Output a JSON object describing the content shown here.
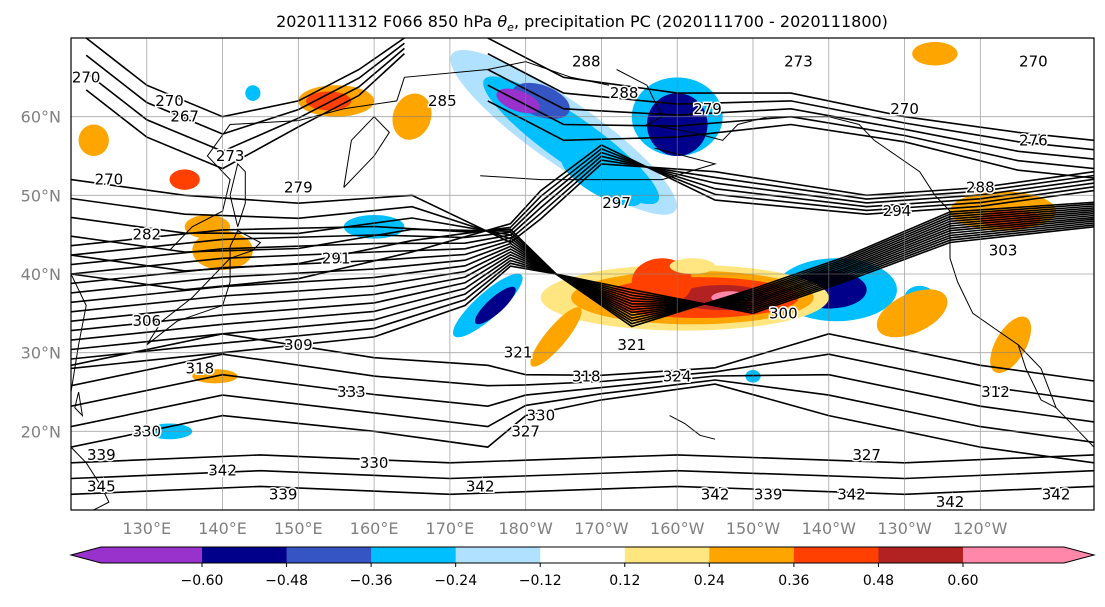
{
  "title": "2020111312 F066 850 hPa θe, precipitation PC (2020111700 - 2020111800)",
  "title_parts": {
    "prefix": "2020111312 F066 850 hPa ",
    "theta": "θ",
    "sub": "e",
    "suffix": ", precipitation PC (2020111700 - 2020111800)"
  },
  "map": {
    "lon_range": [
      120,
      255
    ],
    "lat_range": [
      10,
      70
    ],
    "grid": true,
    "lon_ticks": [
      {
        "lon": 130,
        "label": "130°E"
      },
      {
        "lon": 140,
        "label": "140°E"
      },
      {
        "lon": 150,
        "label": "150°E"
      },
      {
        "lon": 160,
        "label": "160°E"
      },
      {
        "lon": 170,
        "label": "170°E"
      },
      {
        "lon": 180,
        "label": "180°W"
      },
      {
        "lon": 190,
        "label": "170°W"
      },
      {
        "lon": 200,
        "label": "160°W"
      },
      {
        "lon": 210,
        "label": "150°W"
      },
      {
        "lon": 220,
        "label": "140°W"
      },
      {
        "lon": 230,
        "label": "130°W"
      },
      {
        "lon": 240,
        "label": "120°W"
      }
    ],
    "lat_ticks": [
      {
        "lat": 20,
        "label": "20°N"
      },
      {
        "lat": 30,
        "label": "30°N"
      },
      {
        "lat": 40,
        "label": "40°N"
      },
      {
        "lat": 50,
        "label": "50°N"
      },
      {
        "lat": 60,
        "label": "60°N"
      }
    ]
  },
  "contour_labels": [
    {
      "text": "270",
      "lon": 122,
      "lat": 65
    },
    {
      "text": "270",
      "lon": 133,
      "lat": 62
    },
    {
      "text": "267",
      "lon": 135,
      "lat": 60
    },
    {
      "text": "270",
      "lon": 125,
      "lat": 52
    },
    {
      "text": "273",
      "lon": 141,
      "lat": 55
    },
    {
      "text": "279",
      "lon": 150,
      "lat": 51
    },
    {
      "text": "282",
      "lon": 130,
      "lat": 45
    },
    {
      "text": "285",
      "lon": 169,
      "lat": 62
    },
    {
      "text": "288",
      "lon": 188,
      "lat": 67
    },
    {
      "text": "288",
      "lon": 193,
      "lat": 63
    },
    {
      "text": "279",
      "lon": 204,
      "lat": 61
    },
    {
      "text": "273",
      "lon": 216,
      "lat": 67
    },
    {
      "text": "270",
      "lon": 247,
      "lat": 67
    },
    {
      "text": "270",
      "lon": 230,
      "lat": 61
    },
    {
      "text": "276",
      "lon": 247,
      "lat": 57
    },
    {
      "text": "288",
      "lon": 240,
      "lat": 51
    },
    {
      "text": "294",
      "lon": 229,
      "lat": 48
    },
    {
      "text": "303",
      "lon": 243,
      "lat": 43
    },
    {
      "text": "297",
      "lon": 192,
      "lat": 49
    },
    {
      "text": "291",
      "lon": 155,
      "lat": 42
    },
    {
      "text": "306",
      "lon": 130,
      "lat": 34
    },
    {
      "text": "309",
      "lon": 150,
      "lat": 31
    },
    {
      "text": "318",
      "lon": 137,
      "lat": 28
    },
    {
      "text": "321",
      "lon": 194,
      "lat": 31
    },
    {
      "text": "318",
      "lon": 188,
      "lat": 27
    },
    {
      "text": "324",
      "lon": 200,
      "lat": 27
    },
    {
      "text": "300",
      "lon": 214,
      "lat": 35
    },
    {
      "text": "330",
      "lon": 130,
      "lat": 20
    },
    {
      "text": "333",
      "lon": 157,
      "lat": 25
    },
    {
      "text": "330",
      "lon": 182,
      "lat": 22
    },
    {
      "text": "327",
      "lon": 180,
      "lat": 20
    },
    {
      "text": "330",
      "lon": 160,
      "lat": 16
    },
    {
      "text": "339",
      "lon": 148,
      "lat": 12
    },
    {
      "text": "342",
      "lon": 140,
      "lat": 15
    },
    {
      "text": "342",
      "lon": 174,
      "lat": 13
    },
    {
      "text": "342",
      "lon": 205,
      "lat": 12
    },
    {
      "text": "339",
      "lon": 212,
      "lat": 12
    },
    {
      "text": "342",
      "lon": 223,
      "lat": 12
    },
    {
      "text": "342",
      "lon": 236,
      "lat": 11
    },
    {
      "text": "342",
      "lon": 250,
      "lat": 12
    },
    {
      "text": "327",
      "lon": 225,
      "lat": 17
    },
    {
      "text": "312",
      "lon": 242,
      "lat": 25
    },
    {
      "text": "345",
      "lon": 124,
      "lat": 13
    },
    {
      "text": "339",
      "lon": 124,
      "lat": 17
    },
    {
      "text": "321",
      "lon": 179,
      "lat": 30
    }
  ],
  "colorbar": {
    "levels": [
      -0.6,
      -0.48,
      -0.36,
      -0.24,
      -0.12,
      0.12,
      0.24,
      0.36,
      0.48,
      0.6
    ],
    "tick_labels": [
      "−0.60",
      "−0.48",
      "−0.36",
      "−0.24",
      "−0.12",
      "0.12",
      "0.24",
      "0.36",
      "0.48",
      "0.60"
    ],
    "colors": [
      "#9932cc",
      "#00008b",
      "#3655c5",
      "#00bfff",
      "#b0e2ff",
      "#ffffff",
      "#ffe680",
      "#ffa500",
      "#ff4000",
      "#b22222",
      "#ff88aa"
    ],
    "extend": "both"
  }
}
